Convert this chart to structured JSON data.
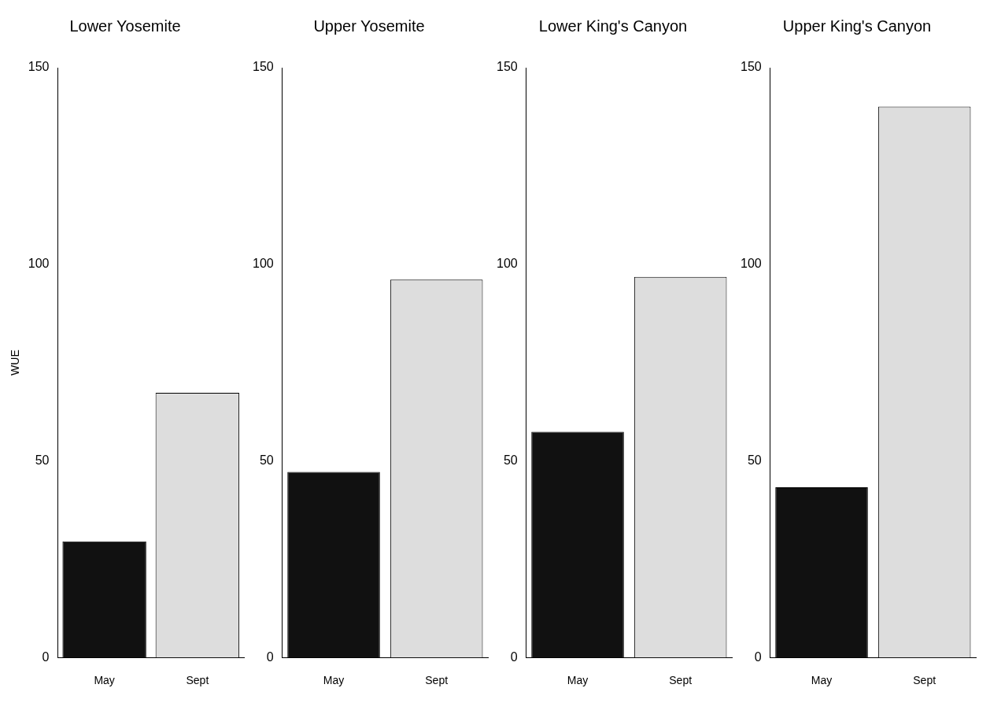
{
  "chart_data": [
    {
      "type": "bar",
      "title": "Lower Yosemite",
      "ylabel": "WUE",
      "categories": [
        "May",
        "Sept"
      ],
      "values": [
        29.5,
        67.3
      ],
      "colors": [
        "#111111",
        "#dddddd"
      ],
      "ylim": [
        0,
        150
      ],
      "yticks": [
        0,
        50,
        100,
        150
      ],
      "grid": false,
      "legend": false
    },
    {
      "type": "bar",
      "title": "Upper Yosemite",
      "categories": [
        "May",
        "Sept"
      ],
      "values": [
        47.2,
        96.1
      ],
      "colors": [
        "#111111",
        "#dddddd"
      ],
      "ylim": [
        0,
        150
      ],
      "yticks": [
        0,
        50,
        100,
        150
      ],
      "grid": false,
      "legend": false
    },
    {
      "type": "bar",
      "title": "Lower King's Canyon",
      "categories": [
        "May",
        "Sept"
      ],
      "values": [
        57.4,
        96.8
      ],
      "colors": [
        "#111111",
        "#dddddd"
      ],
      "ylim": [
        0,
        150
      ],
      "yticks": [
        0,
        50,
        100,
        150
      ],
      "grid": false,
      "legend": false
    },
    {
      "type": "bar",
      "title": "Upper King's Canyon",
      "categories": [
        "May",
        "Sept"
      ],
      "values": [
        43.3,
        140.1
      ],
      "colors": [
        "#111111",
        "#dddddd"
      ],
      "ylim": [
        0,
        150
      ],
      "yticks": [
        0,
        50,
        100,
        150
      ],
      "grid": false,
      "legend": false
    }
  ]
}
